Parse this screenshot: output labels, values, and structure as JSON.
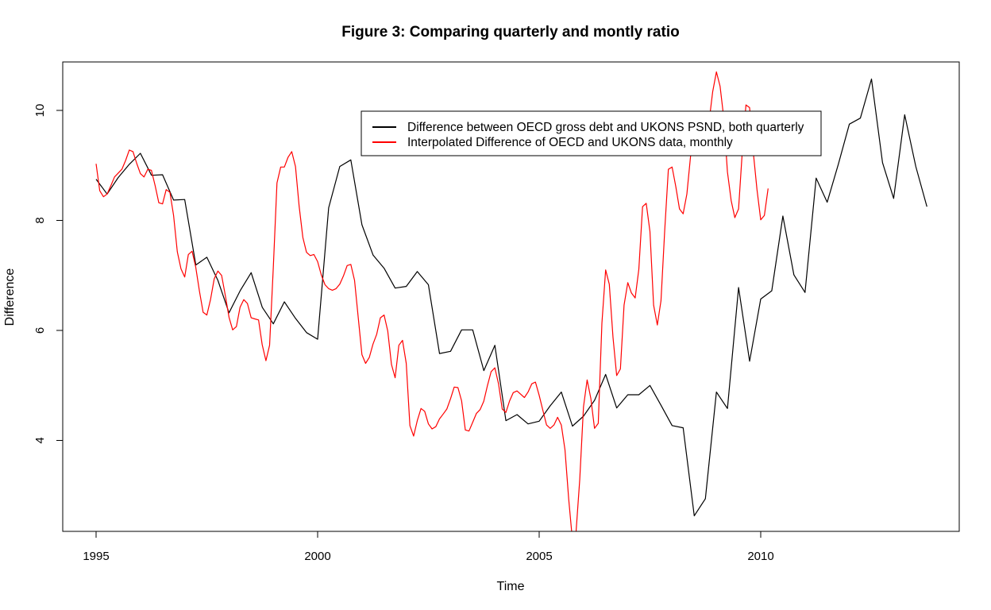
{
  "chart_data": {
    "type": "line",
    "title": "Figure 3: Comparing quarterly and montly ratio",
    "xlabel": "Time",
    "ylabel": "Difference",
    "xlim": [
      1994.25,
      2014.5
    ],
    "ylim": [
      2.3,
      10.85
    ],
    "x_ticks": [
      1995,
      2000,
      2005,
      2010
    ],
    "x_tick_labels": [
      "1995",
      "2000",
      "2005",
      "2010"
    ],
    "y_ticks": [
      4,
      6,
      8,
      10
    ],
    "y_tick_labels": [
      "4",
      "6",
      "8",
      "10"
    ],
    "grid": false,
    "legend_position": "top-center",
    "series": [
      {
        "name": "Difference between OECD gross debt and UKONS PSND, both quarterly",
        "color": "#000000",
        "x": [
          1995.0,
          1995.25,
          1995.5,
          1995.75,
          1996.0,
          1996.25,
          1996.5,
          1996.75,
          1997.0,
          1997.25,
          1997.5,
          1997.75,
          1998.0,
          1998.25,
          1998.5,
          1998.75,
          1999.0,
          1999.25,
          1999.5,
          1999.75,
          2000.0,
          2000.25,
          2000.5,
          2000.75,
          2001.0,
          2001.25,
          2001.5,
          2001.75,
          2002.0,
          2002.25,
          2002.5,
          2002.75,
          2003.0,
          2003.25,
          2003.5,
          2003.75,
          2004.0,
          2004.25,
          2004.5,
          2004.75,
          2005.0,
          2005.25,
          2005.5,
          2005.75,
          2006.0,
          2006.25,
          2006.5,
          2006.75,
          2007.0,
          2007.25,
          2007.5,
          2007.75,
          2008.0,
          2008.25,
          2008.5,
          2008.75,
          2009.0,
          2009.25,
          2009.5,
          2009.75,
          2010.0,
          2010.25,
          2010.5,
          2010.75,
          2011.0,
          2011.25,
          2011.5,
          2011.75,
          2012.0,
          2012.25,
          2012.5,
          2012.75,
          2013.0,
          2013.25,
          2013.5,
          2013.75
        ],
        "values": [
          8.75,
          8.48,
          8.78,
          9.02,
          9.22,
          8.82,
          8.83,
          8.37,
          8.38,
          7.19,
          7.33,
          6.91,
          6.32,
          6.72,
          7.05,
          6.42,
          6.12,
          6.52,
          6.22,
          5.96,
          5.84,
          8.23,
          8.98,
          9.1,
          7.92,
          7.37,
          7.13,
          6.77,
          6.8,
          7.07,
          6.83,
          5.58,
          5.62,
          6.01,
          6.01,
          5.27,
          5.73,
          4.36,
          4.47,
          4.3,
          4.35,
          4.63,
          4.88,
          4.26,
          4.44,
          4.73,
          5.2,
          4.59,
          4.83,
          4.83,
          5.0,
          4.64,
          4.27,
          4.23,
          2.63,
          2.94,
          4.88,
          4.58,
          6.78,
          5.44,
          6.57,
          6.72,
          8.08,
          7.01,
          6.69,
          8.77,
          8.33,
          9.02,
          9.75,
          9.86,
          10.57,
          9.05,
          8.4,
          9.92,
          8.98,
          8.25
        ]
      },
      {
        "name": "Interpolated Difference of OECD and UKONS data, monthly",
        "color": "#ff0000",
        "x_start": 1995.0,
        "x_step": 0.08333,
        "values": [
          9.03,
          8.54,
          8.43,
          8.48,
          8.63,
          8.79,
          8.86,
          8.93,
          9.09,
          9.28,
          9.25,
          9.04,
          8.85,
          8.79,
          8.93,
          8.91,
          8.63,
          8.32,
          8.3,
          8.56,
          8.51,
          8.09,
          7.43,
          7.12,
          6.97,
          7.38,
          7.44,
          7.15,
          6.71,
          6.33,
          6.28,
          6.56,
          6.94,
          7.08,
          7.0,
          6.64,
          6.24,
          6.01,
          6.07,
          6.42,
          6.56,
          6.49,
          6.23,
          6.21,
          6.19,
          5.74,
          5.45,
          5.73,
          7.15,
          8.68,
          8.97,
          8.97,
          9.15,
          9.25,
          8.98,
          8.26,
          7.69,
          7.42,
          7.36,
          7.38,
          7.25,
          7.01,
          6.83,
          6.76,
          6.73,
          6.76,
          6.84,
          6.99,
          7.18,
          7.2,
          6.91,
          6.24,
          5.56,
          5.4,
          5.51,
          5.75,
          5.93,
          6.23,
          6.28,
          5.99,
          5.38,
          5.14,
          5.73,
          5.82,
          5.4,
          4.27,
          4.08,
          4.36,
          4.58,
          4.53,
          4.3,
          4.21,
          4.25,
          4.39,
          4.48,
          4.57,
          4.76,
          4.97,
          4.96,
          4.72,
          4.19,
          4.17,
          4.33,
          4.49,
          4.56,
          4.71,
          5.0,
          5.25,
          5.32,
          5.03,
          4.57,
          4.51,
          4.72,
          4.87,
          4.9,
          4.84,
          4.78,
          4.88,
          5.03,
          5.06,
          4.82,
          4.55,
          4.28,
          4.22,
          4.28,
          4.42,
          4.28,
          3.83,
          2.93,
          2.2,
          2.35,
          3.29,
          4.61,
          5.1,
          4.76,
          4.22,
          4.31,
          6.13,
          7.1,
          6.84,
          5.87,
          5.18,
          5.3,
          6.46,
          6.87,
          6.68,
          6.59,
          7.11,
          8.25,
          8.31,
          7.8,
          6.46,
          6.1,
          6.54,
          7.82,
          8.93,
          8.97,
          8.62,
          8.21,
          8.12,
          8.48,
          9.16,
          9.62,
          9.72,
          9.68,
          9.62,
          9.79,
          10.34,
          10.7,
          10.44,
          9.86,
          8.88,
          8.36,
          8.05,
          8.21,
          9.23,
          10.1,
          10.05,
          9.23,
          8.56,
          8.01,
          8.09,
          8.58
        ]
      }
    ]
  }
}
